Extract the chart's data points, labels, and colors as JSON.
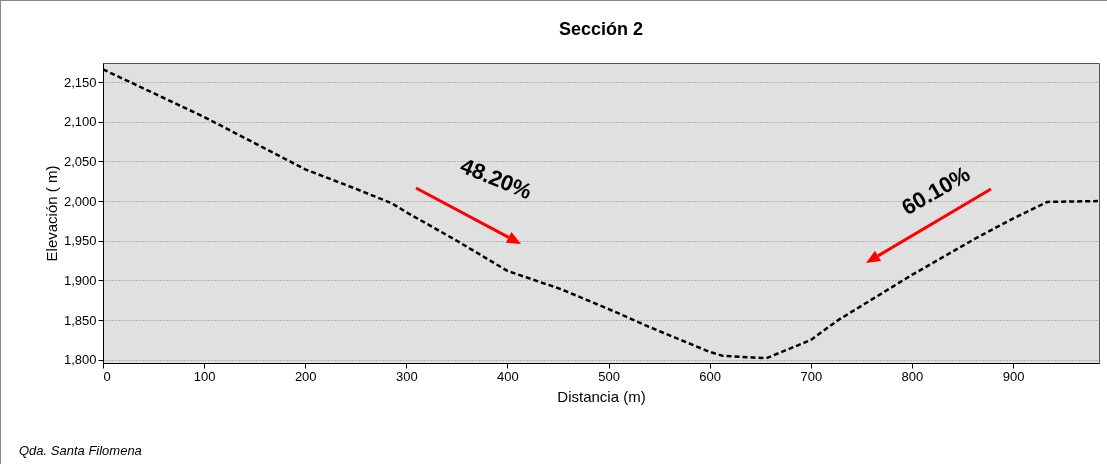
{
  "chart_data": {
    "type": "line",
    "title": "Sección 2",
    "xlabel": "Distancia (m)",
    "ylabel": "Elevación ( m)",
    "x": [
      0,
      100,
      200,
      251,
      286,
      300,
      350,
      400,
      453,
      500,
      541,
      600,
      613,
      656,
      700,
      727,
      791,
      800,
      863,
      900,
      934,
      984
    ],
    "series": [
      {
        "color": "#000000",
        "values": [
          2166,
          2106,
          2040,
          2015,
          1997,
          1986,
          1950,
          1912,
          1889,
          1864,
          1841,
          1810,
          1805,
          1802,
          1825,
          1850,
          1900,
          1907,
          1953,
          1978,
          1999,
          2000
        ]
      }
    ],
    "xlim": [
      0,
      985
    ],
    "xticks": [
      0,
      100,
      200,
      300,
      400,
      500,
      600,
      700,
      800,
      900
    ],
    "ylim": [
      1796,
      2174
    ],
    "yticks": [
      {
        "value": 1800,
        "label": "1,800"
      },
      {
        "value": 1850,
        "label": "1,850"
      },
      {
        "value": 1900,
        "label": "1,900"
      },
      {
        "value": 1950,
        "label": "1,950"
      },
      {
        "value": 2000,
        "label": "2,000"
      },
      {
        "value": 2050,
        "label": "2,050"
      },
      {
        "value": 2100,
        "label": "2,100"
      },
      {
        "value": 2150,
        "label": "2,150"
      }
    ],
    "grid": "y",
    "line_style": "dashed",
    "marker": "none",
    "legend": false,
    "annotations": [
      "48.20%",
      "60.10%",
      "Qda. Santa Filomena"
    ]
  }
}
